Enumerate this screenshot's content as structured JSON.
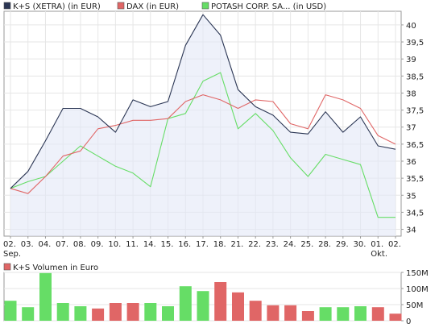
{
  "legend": [
    {
      "label": "K+S (XETRA) (in EUR)",
      "color": "#2b3654"
    },
    {
      "label": "DAX (in EUR)",
      "color": "#e06666"
    },
    {
      "label": "POTASH CORP. SA... (in USD)",
      "color": "#66dd66"
    }
  ],
  "volume_legend": {
    "label": "K+S Volumen in Euro",
    "color": "#e06666"
  },
  "chart_data": [
    {
      "type": "line",
      "categories": [
        "02.",
        "03.",
        "04.",
        "07.",
        "08.",
        "09.",
        "10.",
        "11.",
        "14.",
        "15.",
        "16.",
        "17.",
        "18.",
        "21.",
        "22.",
        "23.",
        "24.",
        "25.",
        "28.",
        "29.",
        "30.",
        "01.",
        "02."
      ],
      "sublabels": [
        "Sep.",
        "",
        "",
        "",
        "",
        "",
        "",
        "",
        "",
        "",
        "",
        "",
        "",
        "",
        "",
        "",
        "",
        "",
        "",
        "",
        "",
        "Okt.",
        ""
      ],
      "ylim": [
        33.8,
        40.4
      ],
      "yticks": [
        "34",
        "34,5",
        "35",
        "35,5",
        "36",
        "36,5",
        "37",
        "37,5",
        "38",
        "38,5",
        "39",
        "39,5",
        "40"
      ],
      "grid": true,
      "series": [
        {
          "name": "K+S (XETRA) (in EUR)",
          "color": "#2b3654",
          "values": [
            35.2,
            35.7,
            36.6,
            37.55,
            37.55,
            37.3,
            36.85,
            37.8,
            37.6,
            37.75,
            39.4,
            40.3,
            39.7,
            38.1,
            37.6,
            37.35,
            36.85,
            36.8,
            37.45,
            36.85,
            37.3,
            36.45,
            36.35
          ]
        },
        {
          "name": "DAX (in EUR)",
          "color": "#e06666",
          "values": [
            35.2,
            35.05,
            35.55,
            36.15,
            36.3,
            36.95,
            37.05,
            37.2,
            37.2,
            37.25,
            37.75,
            37.95,
            37.8,
            37.55,
            37.8,
            37.75,
            37.1,
            36.95,
            37.95,
            37.8,
            37.55,
            36.75,
            36.5
          ]
        },
        {
          "name": "POTASH CORP. SA... (in USD)",
          "color": "#66dd66",
          "values": [
            35.2,
            35.4,
            35.55,
            36.0,
            36.45,
            36.15,
            35.85,
            35.65,
            35.25,
            37.25,
            37.4,
            38.35,
            38.6,
            36.95,
            37.4,
            36.9,
            36.1,
            35.55,
            36.2,
            36.05,
            35.9,
            34.35,
            34.35
          ]
        }
      ]
    },
    {
      "type": "bar",
      "title": "K+S Volumen in Euro",
      "ylim": [
        0,
        150
      ],
      "yticks": [
        "0",
        "50M",
        "100M",
        "150M"
      ],
      "values": [
        62,
        42,
        148,
        55,
        45,
        38,
        55,
        55,
        55,
        45,
        107,
        92,
        120,
        88,
        62,
        48,
        48,
        30,
        42,
        42,
        45,
        42,
        22
      ],
      "up_color": "#66dd66",
      "down_color": "#e06666",
      "colors": [
        "g",
        "g",
        "g",
        "g",
        "g",
        "r",
        "r",
        "r",
        "g",
        "g",
        "g",
        "g",
        "r",
        "r",
        "r",
        "r",
        "r",
        "r",
        "g",
        "g",
        "g",
        "r",
        "r"
      ]
    }
  ]
}
